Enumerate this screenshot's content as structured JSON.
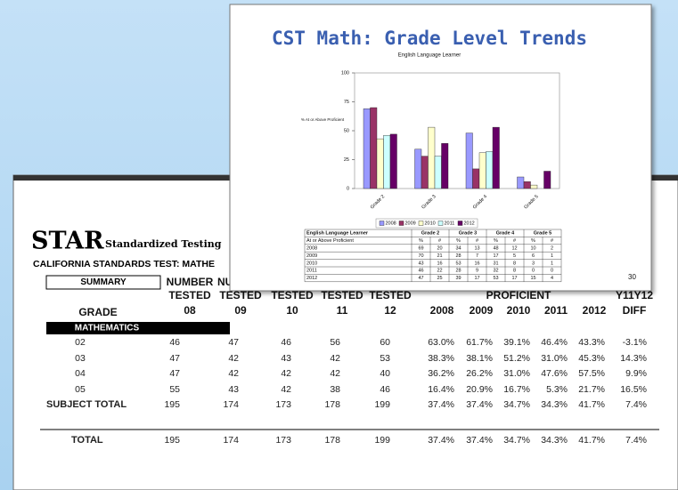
{
  "chart_data": {
    "type": "bar",
    "title": "CST Math: Grade Level Trends",
    "subtitle": "English Language Learner",
    "y_label": "% At or Above Proficient",
    "categories": [
      "Grade 2",
      "Grade 3",
      "Grade 4",
      "Grade 5"
    ],
    "series": [
      {
        "name": "2008",
        "color": "#9999ff",
        "values": [
          69,
          34,
          48,
          10
        ]
      },
      {
        "name": "2009",
        "color": "#993366",
        "values": [
          70,
          28,
          17,
          6
        ]
      },
      {
        "name": "2010",
        "color": "#ffffcc",
        "values": [
          43,
          53,
          31,
          3
        ]
      },
      {
        "name": "2011",
        "color": "#ccffff",
        "values": [
          46,
          28,
          32,
          0
        ]
      },
      {
        "name": "2012",
        "color": "#660066",
        "values": [
          47,
          39,
          53,
          15
        ]
      }
    ],
    "ylim": [
      0,
      100
    ],
    "yticks": [
      0,
      25,
      50,
      75,
      100
    ],
    "legend": "bottom"
  },
  "slide": {
    "page_number": "30",
    "table": {
      "header": [
        "English Language Learner",
        "Grade 2",
        "Grade 3",
        "Grade 4",
        "Grade 5"
      ],
      "subheader": [
        "At or Above Proficient",
        "%",
        "#",
        "%",
        "#",
        "%",
        "#",
        "%",
        "#"
      ],
      "rows": [
        [
          "2008",
          "69",
          "20",
          "34",
          "13",
          "48",
          "12",
          "10",
          "2"
        ],
        [
          "2009",
          "70",
          "21",
          "28",
          "7",
          "17",
          "5",
          "6",
          "1"
        ],
        [
          "2010",
          "43",
          "16",
          "53",
          "16",
          "31",
          "8",
          "3",
          "1"
        ],
        [
          "2011",
          "46",
          "22",
          "28",
          "9",
          "32",
          "8",
          "0",
          "0"
        ],
        [
          "2012",
          "47",
          "25",
          "39",
          "17",
          "53",
          "17",
          "15",
          "4"
        ]
      ]
    }
  },
  "report": {
    "logo": "STAR",
    "logo_sub": "Standardized Testing",
    "test_name": "CALIFORNIA STANDARDS TEST: MATHE",
    "summary": "SUMMARY",
    "section": "MATHEMATICS",
    "header_rows": [
      [
        "NUMBER",
        "NU"
      ],
      [
        "TESTED",
        "TESTED",
        "TESTED",
        "TESTED",
        "TESTED",
        "PROFICIENT",
        "Y11Y12"
      ],
      [
        "GRADE",
        "08",
        "09",
        "10",
        "11",
        "12",
        "2008",
        "2009",
        "2010",
        "2011",
        "2012",
        "DIFF"
      ]
    ],
    "rows": [
      [
        "02",
        "46",
        "47",
        "46",
        "56",
        "60",
        "63.0%",
        "61.7%",
        "39.1%",
        "46.4%",
        "43.3%",
        "-3.1%"
      ],
      [
        "03",
        "47",
        "42",
        "43",
        "42",
        "53",
        "38.3%",
        "38.1%",
        "51.2%",
        "31.0%",
        "45.3%",
        "14.3%"
      ],
      [
        "04",
        "47",
        "42",
        "42",
        "42",
        "40",
        "36.2%",
        "26.2%",
        "31.0%",
        "47.6%",
        "57.5%",
        "9.9%"
      ],
      [
        "05",
        "55",
        "43",
        "42",
        "38",
        "46",
        "16.4%",
        "20.9%",
        "16.7%",
        "5.3%",
        "21.7%",
        "16.5%"
      ],
      [
        "SUBJECT TOTAL",
        "195",
        "174",
        "173",
        "178",
        "199",
        "37.4%",
        "37.4%",
        "34.7%",
        "34.3%",
        "41.7%",
        "7.4%"
      ],
      [
        "TOTAL",
        "195",
        "174",
        "173",
        "178",
        "199",
        "37.4%",
        "37.4%",
        "34.7%",
        "34.3%",
        "41.7%",
        "7.4%"
      ]
    ]
  }
}
